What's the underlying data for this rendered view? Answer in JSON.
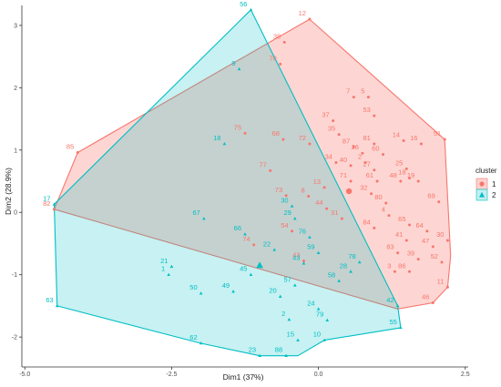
{
  "chart_data": {
    "type": "scatter",
    "xlabel": "Dim1 (37%)",
    "ylabel": "Dim2 (28.9%)",
    "xlim": [
      -5.05,
      2.55
    ],
    "ylim": [
      -2.48,
      3.32
    ],
    "x_ticks": [
      "-5.0",
      "-2.5",
      "0.0",
      "2.5"
    ],
    "x_tick_values": [
      -5.0,
      -2.5,
      0.0,
      2.5
    ],
    "y_ticks": [
      "3",
      "2",
      "1",
      "0",
      "-1",
      "-2"
    ],
    "y_tick_values": [
      3,
      2,
      1,
      0,
      -1,
      -2
    ],
    "grid": false,
    "legend": {
      "title": "cluster",
      "placement": "right",
      "entries": [
        {
          "label": "1",
          "shape": "circle",
          "color": "#F8766D"
        },
        {
          "label": "2",
          "shape": "triangle",
          "color": "#00BFC4"
        }
      ]
    },
    "series": [
      {
        "name": "1",
        "color": "#F8766D",
        "shape": "circle",
        "points": [
          {
            "label": "12",
            "x": -0.15,
            "y": 3.1
          },
          {
            "label": "38",
            "x": -0.58,
            "y": 2.73
          },
          {
            "label": "70",
            "x": -0.65,
            "y": 2.38
          },
          {
            "label": "85",
            "x": -4.1,
            "y": 0.96
          },
          {
            "label": "82",
            "x": -4.5,
            "y": 0.05
          },
          {
            "label": "75",
            "x": -1.25,
            "y": 1.27
          },
          {
            "label": "68",
            "x": -0.6,
            "y": 1.17
          },
          {
            "label": "77",
            "x": -0.82,
            "y": 0.67
          },
          {
            "label": "73",
            "x": -0.55,
            "y": 0.27
          },
          {
            "label": "8",
            "x": -0.17,
            "y": 0.26
          },
          {
            "label": "13",
            "x": 0.1,
            "y": 0.4
          },
          {
            "label": "44",
            "x": 0.14,
            "y": 0.06
          },
          {
            "label": "54",
            "x": -0.45,
            "y": -0.3
          },
          {
            "label": "74",
            "x": -1.1,
            "y": -0.52
          },
          {
            "label": "43",
            "x": -0.25,
            "y": -0.78
          },
          {
            "label": "7",
            "x": 0.6,
            "y": 1.85
          },
          {
            "label": "5",
            "x": 0.85,
            "y": 1.85
          },
          {
            "label": "37",
            "x": 0.25,
            "y": 1.47
          },
          {
            "label": "53",
            "x": 0.95,
            "y": 1.55
          },
          {
            "label": "35",
            "x": 0.35,
            "y": 1.25
          },
          {
            "label": "72",
            "x": -0.15,
            "y": 1.1
          },
          {
            "label": "87",
            "x": 0.6,
            "y": 1.05
          },
          {
            "label": "81",
            "x": 0.95,
            "y": 1.1
          },
          {
            "label": "14",
            "x": 1.45,
            "y": 1.15
          },
          {
            "label": "16",
            "x": 1.75,
            "y": 1.1
          },
          {
            "label": "26",
            "x": 0.75,
            "y": 0.95
          },
          {
            "label": "60",
            "x": 1.1,
            "y": 0.93
          },
          {
            "label": "51",
            "x": 2.15,
            "y": 1.17
          },
          {
            "label": "34",
            "x": 0.3,
            "y": 0.8
          },
          {
            "label": "40",
            "x": 0.55,
            "y": 0.75
          },
          {
            "label": "2",
            "x": 0.8,
            "y": 0.8
          },
          {
            "label": "27",
            "x": 0.95,
            "y": 0.68
          },
          {
            "label": "25",
            "x": 1.5,
            "y": 0.7
          },
          {
            "label": "18",
            "x": 1.55,
            "y": 0.55
          },
          {
            "label": "48",
            "x": 1.4,
            "y": 0.5
          },
          {
            "label": "19",
            "x": 1.7,
            "y": 0.5
          },
          {
            "label": "71",
            "x": 0.55,
            "y": 0.5
          },
          {
            "label": "61",
            "x": 1.0,
            "y": 0.5
          },
          {
            "label": "32",
            "x": 0.9,
            "y": 0.3
          },
          {
            "label": "80",
            "x": 1.15,
            "y": 0.15
          },
          {
            "label": "69",
            "x": 2.05,
            "y": 0.17
          },
          {
            "label": "4",
            "x": 1.2,
            "y": -0.05
          },
          {
            "label": "31",
            "x": 0.4,
            "y": -0.1
          },
          {
            "label": "84",
            "x": 0.95,
            "y": -0.25
          },
          {
            "label": "65",
            "x": 1.55,
            "y": -0.2
          },
          {
            "label": "64",
            "x": 1.85,
            "y": -0.3
          },
          {
            "label": "41",
            "x": 1.5,
            "y": -0.45
          },
          {
            "label": "47",
            "x": 1.95,
            "y": -0.55
          },
          {
            "label": "30",
            "x": 2.2,
            "y": -0.45
          },
          {
            "label": "83",
            "x": 1.35,
            "y": -0.65
          },
          {
            "label": "39",
            "x": 1.7,
            "y": -0.75
          },
          {
            "label": "52",
            "x": 2.1,
            "y": -0.8
          },
          {
            "label": "3",
            "x": 1.3,
            "y": -0.95
          },
          {
            "label": "86",
            "x": 1.55,
            "y": -0.95
          },
          {
            "label": "11",
            "x": 2.2,
            "y": -1.2
          },
          {
            "label": "46",
            "x": 1.95,
            "y": -1.45
          }
        ],
        "hull": [
          [
            -0.15,
            3.1
          ],
          [
            2.15,
            1.17
          ],
          [
            2.25,
            -0.7
          ],
          [
            2.2,
            -1.2
          ],
          [
            1.95,
            -1.45
          ],
          [
            1.35,
            -1.55
          ],
          [
            -4.5,
            0.05
          ],
          [
            -4.1,
            0.96
          ]
        ]
      },
      {
        "name": "2",
        "color": "#00BFC4",
        "shape": "triangle",
        "points": [
          {
            "label": "56",
            "x": -1.15,
            "y": 3.25
          },
          {
            "label": "9",
            "x": -1.35,
            "y": 2.3
          },
          {
            "label": "18",
            "x": -1.6,
            "y": 1.1
          },
          {
            "label": "17",
            "x": -4.5,
            "y": 0.13
          },
          {
            "label": "67",
            "x": -1.95,
            "y": -0.1
          },
          {
            "label": "66",
            "x": -1.25,
            "y": -0.35
          },
          {
            "label": "22",
            "x": -0.75,
            "y": -0.6
          },
          {
            "label": "30",
            "x": -0.45,
            "y": 0.1
          },
          {
            "label": "29",
            "x": -0.4,
            "y": -0.1
          },
          {
            "label": "76",
            "x": -0.15,
            "y": -0.4
          },
          {
            "label": "59",
            "x": 0.0,
            "y": -0.65
          },
          {
            "label": "43",
            "x": -0.25,
            "y": -0.82
          },
          {
            "label": "21",
            "x": -2.5,
            "y": -0.87
          },
          {
            "label": "1",
            "x": -2.55,
            "y": -1.0
          },
          {
            "label": "45",
            "x": -1.15,
            "y": -1.0
          },
          {
            "label": "50",
            "x": -2.0,
            "y": -1.3
          },
          {
            "label": "49",
            "x": -1.45,
            "y": -1.27
          },
          {
            "label": "20",
            "x": -0.65,
            "y": -1.35
          },
          {
            "label": "57",
            "x": -0.4,
            "y": -1.17
          },
          {
            "label": "58",
            "x": 0.35,
            "y": -1.1
          },
          {
            "label": "28",
            "x": 0.55,
            "y": -0.95
          },
          {
            "label": "78",
            "x": 0.7,
            "y": -0.8
          },
          {
            "label": "24",
            "x": 0.0,
            "y": -1.55
          },
          {
            "label": "2",
            "x": -0.5,
            "y": -1.72
          },
          {
            "label": "79",
            "x": 0.15,
            "y": -1.73
          },
          {
            "label": "42",
            "x": 1.35,
            "y": -1.5
          },
          {
            "label": "55",
            "x": 1.4,
            "y": -1.85
          },
          {
            "label": "63",
            "x": -4.45,
            "y": -1.5
          },
          {
            "label": "62",
            "x": -2.0,
            "y": -2.1
          },
          {
            "label": "23",
            "x": -1.0,
            "y": -2.3
          },
          {
            "label": "88",
            "x": -0.55,
            "y": -2.3
          },
          {
            "label": "15",
            "x": -0.35,
            "y": -2.05
          },
          {
            "label": "10",
            "x": 0.1,
            "y": -2.05
          }
        ],
        "hull": [
          [
            -1.15,
            3.25
          ],
          [
            1.35,
            -1.5
          ],
          [
            1.4,
            -1.85
          ],
          [
            0.1,
            -2.05
          ],
          [
            -0.35,
            -2.3
          ],
          [
            -1.0,
            -2.3
          ],
          [
            -2.0,
            -2.1
          ],
          [
            -4.45,
            -1.5
          ],
          [
            -4.5,
            0.13
          ]
        ]
      }
    ],
    "centroids": [
      {
        "cluster": "1",
        "x": 0.52,
        "y": 0.34
      },
      {
        "cluster": "2",
        "x": -1.0,
        "y": -0.85
      }
    ]
  }
}
